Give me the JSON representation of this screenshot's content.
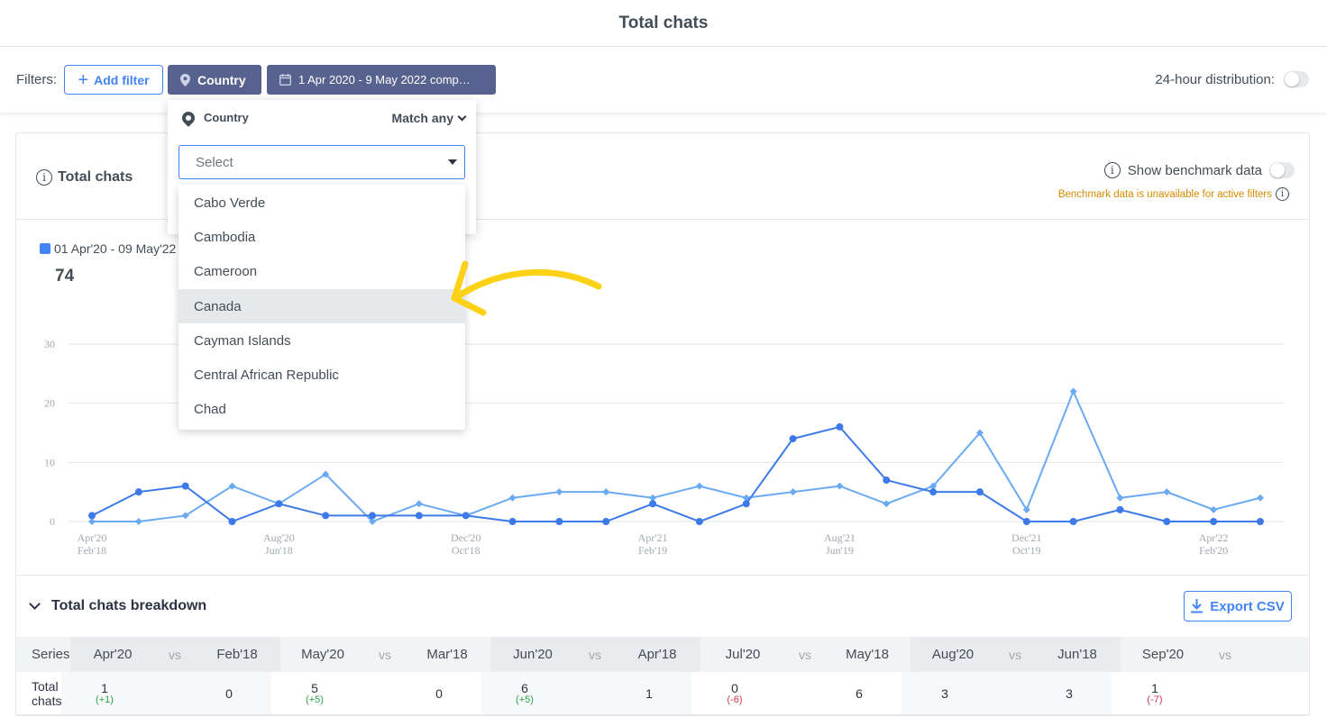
{
  "header": {
    "title": "Total chats"
  },
  "filters": {
    "label": "Filters:",
    "add_filter": "Add filter",
    "country_chip": "Country",
    "date_chip": "1 Apr 2020 - 9 May 2022 comp…",
    "distribution_label": "24-hour distribution:"
  },
  "card": {
    "title": "Total chats",
    "benchmark_label": "Show benchmark data",
    "benchmark_note": "Benchmark data is unavailable for active filters",
    "legend_label": "01 Apr'20 - 09 May'22",
    "total": "74"
  },
  "dropdown": {
    "title": "Country",
    "match": "Match any",
    "placeholder": "Select",
    "options": [
      "Cabo Verde",
      "Cambodia",
      "Cameroon",
      "Canada",
      "Cayman Islands",
      "Central African Republic",
      "Chad"
    ],
    "highlighted": "Canada"
  },
  "chart_data": {
    "type": "line",
    "ylim": [
      0,
      30
    ],
    "yticks": [
      "0",
      "10",
      "20",
      "30"
    ],
    "xticks": [
      {
        "top": "Apr'20",
        "bottom": "Feb'18"
      },
      {
        "top": "Aug'20",
        "bottom": "Jun'18"
      },
      {
        "top": "Dec'20",
        "bottom": "Oct'18"
      },
      {
        "top": "Apr'21",
        "bottom": "Feb'19"
      },
      {
        "top": "Aug'21",
        "bottom": "Jun'19"
      },
      {
        "top": "Dec'21",
        "bottom": "Oct'19"
      },
      {
        "top": "Apr'22",
        "bottom": "Feb'20"
      }
    ],
    "series": [
      {
        "color": "#3d79e8",
        "values": [
          1,
          5,
          6,
          0,
          3,
          1,
          1,
          1,
          1,
          0,
          0,
          0,
          3,
          0,
          3,
          14,
          16,
          7,
          5,
          5,
          0,
          0,
          2,
          0,
          0,
          0
        ]
      },
      {
        "color": "#6aa9f4",
        "values": [
          0,
          0,
          1,
          6,
          3,
          8,
          0,
          3,
          1,
          4,
          5,
          5,
          4,
          6,
          4,
          5,
          6,
          3,
          6,
          15,
          2,
          22,
          4,
          5,
          2,
          4
        ]
      }
    ],
    "grid": true
  },
  "breakdown": {
    "title": "Total chats breakdown",
    "export": "Export CSV",
    "series_header": "Series",
    "row_label": "Total chats",
    "vs": "vs",
    "columns": [
      {
        "a": "Apr'20",
        "b": "Feb'18",
        "a_val": "1",
        "delta": "(+1)",
        "dir": "up",
        "b_val": "0"
      },
      {
        "a": "May'20",
        "b": "Mar'18",
        "a_val": "5",
        "delta": "(+5)",
        "dir": "up",
        "b_val": "0"
      },
      {
        "a": "Jun'20",
        "b": "Apr'18",
        "a_val": "6",
        "delta": "(+5)",
        "dir": "up",
        "b_val": "1"
      },
      {
        "a": "Jul'20",
        "b": "May'18",
        "a_val": "0",
        "delta": "(-6)",
        "dir": "down",
        "b_val": "6"
      },
      {
        "a": "Aug'20",
        "b": "Jun'18",
        "a_val": "3",
        "delta": "",
        "dir": "none",
        "b_val": "3"
      },
      {
        "a": "Sep'20",
        "b": "",
        "a_val": "1",
        "delta": "(-7)",
        "dir": "down",
        "b_val": ""
      }
    ]
  },
  "annotation": {
    "arrow_color": "#fcd116"
  }
}
